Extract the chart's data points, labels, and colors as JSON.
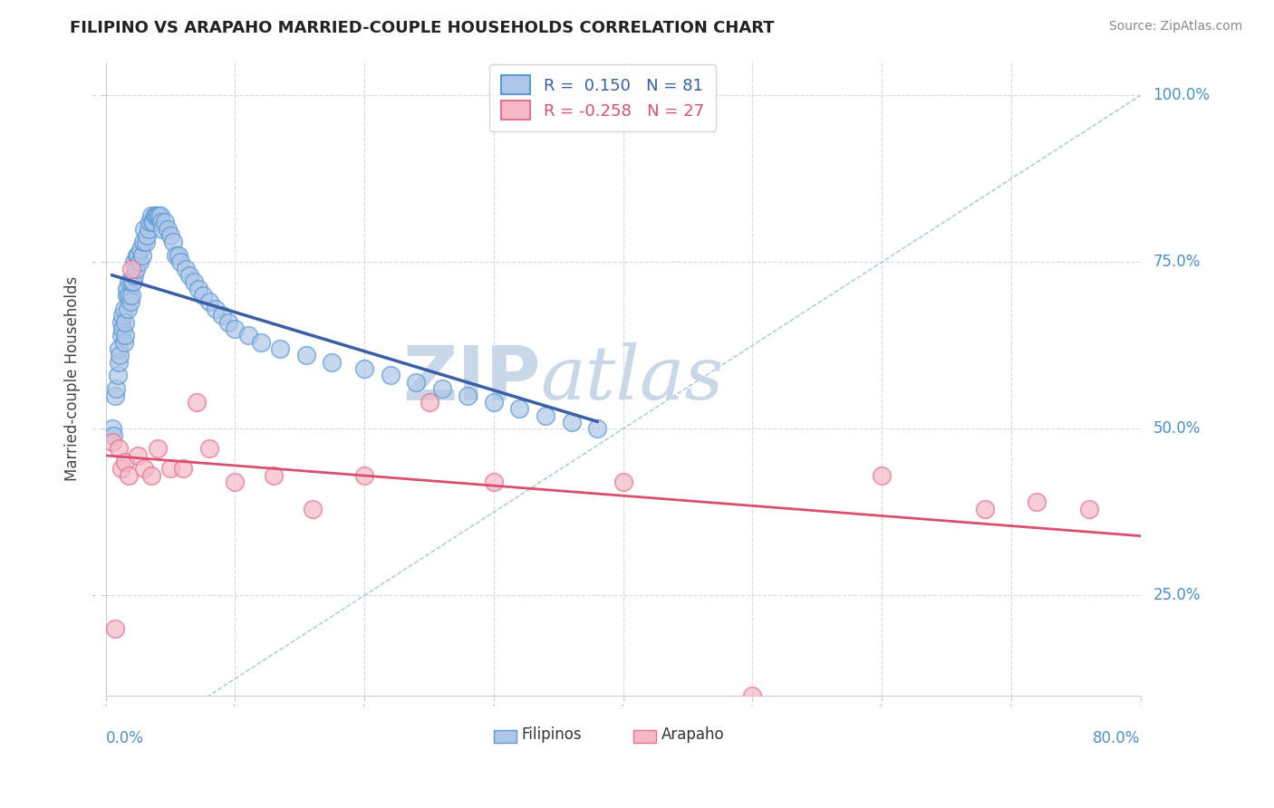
{
  "title": "FILIPINO VS ARAPAHO MARRIED-COUPLE HOUSEHOLDS CORRELATION CHART",
  "source": "Source: ZipAtlas.com",
  "ylabel": "Married-couple Households",
  "xlim": [
    0.0,
    0.8
  ],
  "ylim": [
    0.1,
    1.05
  ],
  "filipinos_R": 0.15,
  "filipinos_N": 81,
  "arapaho_R": -0.258,
  "arapaho_N": 27,
  "filipinos_color": "#aec6e8",
  "filipinos_edge_color": "#5b9bd5",
  "arapaho_color": "#f4b8c8",
  "arapaho_edge_color": "#e87090",
  "trend_filipino_color": "#3a5fa8",
  "trend_arapaho_color": "#d94f6e",
  "ref_line_color": "#9bbfd4",
  "background_color": "#ffffff",
  "watermark_zip": "ZIP",
  "watermark_atlas": "atlas",
  "watermark_color_zip": "#c8d8e8",
  "watermark_color_atlas": "#c8d8e8",
  "grid_color": "#d8d8d8",
  "ytick_vals": [
    0.25,
    0.5,
    0.75,
    1.0
  ],
  "ytick_labels": [
    "25.0%",
    "50.0%",
    "75.0%",
    "100.0%"
  ],
  "fil_x": [
    0.005,
    0.006,
    0.007,
    0.008,
    0.009,
    0.01,
    0.01,
    0.011,
    0.012,
    0.012,
    0.013,
    0.013,
    0.014,
    0.014,
    0.015,
    0.015,
    0.016,
    0.016,
    0.017,
    0.018,
    0.018,
    0.019,
    0.02,
    0.02,
    0.021,
    0.022,
    0.022,
    0.023,
    0.024,
    0.025,
    0.026,
    0.027,
    0.028,
    0.029,
    0.03,
    0.031,
    0.032,
    0.033,
    0.034,
    0.035,
    0.036,
    0.037,
    0.038,
    0.039,
    0.04,
    0.041,
    0.042,
    0.043,
    0.044,
    0.046,
    0.048,
    0.05,
    0.052,
    0.054,
    0.056,
    0.058,
    0.062,
    0.065,
    0.068,
    0.072,
    0.075,
    0.08,
    0.085,
    0.09,
    0.095,
    0.1,
    0.11,
    0.12,
    0.135,
    0.155,
    0.175,
    0.2,
    0.22,
    0.24,
    0.26,
    0.28,
    0.3,
    0.32,
    0.34,
    0.36,
    0.38
  ],
  "fil_y": [
    0.5,
    0.49,
    0.55,
    0.56,
    0.58,
    0.6,
    0.62,
    0.61,
    0.64,
    0.66,
    0.65,
    0.67,
    0.63,
    0.68,
    0.64,
    0.66,
    0.7,
    0.71,
    0.68,
    0.7,
    0.72,
    0.69,
    0.7,
    0.72,
    0.72,
    0.73,
    0.75,
    0.74,
    0.76,
    0.76,
    0.75,
    0.77,
    0.76,
    0.78,
    0.8,
    0.78,
    0.79,
    0.8,
    0.81,
    0.82,
    0.81,
    0.81,
    0.82,
    0.82,
    0.82,
    0.82,
    0.82,
    0.81,
    0.8,
    0.81,
    0.8,
    0.79,
    0.78,
    0.76,
    0.76,
    0.75,
    0.74,
    0.73,
    0.72,
    0.71,
    0.7,
    0.69,
    0.68,
    0.67,
    0.66,
    0.65,
    0.64,
    0.63,
    0.62,
    0.61,
    0.6,
    0.59,
    0.58,
    0.57,
    0.56,
    0.55,
    0.54,
    0.53,
    0.52,
    0.51,
    0.5
  ],
  "ara_x": [
    0.005,
    0.007,
    0.01,
    0.012,
    0.015,
    0.018,
    0.02,
    0.025,
    0.03,
    0.035,
    0.04,
    0.05,
    0.06,
    0.07,
    0.08,
    0.1,
    0.13,
    0.16,
    0.2,
    0.25,
    0.3,
    0.4,
    0.5,
    0.6,
    0.68,
    0.72,
    0.76
  ],
  "ara_y": [
    0.48,
    0.2,
    0.47,
    0.44,
    0.45,
    0.43,
    0.74,
    0.46,
    0.44,
    0.43,
    0.47,
    0.44,
    0.44,
    0.54,
    0.47,
    0.42,
    0.43,
    0.38,
    0.43,
    0.54,
    0.42,
    0.42,
    0.1,
    0.43,
    0.38,
    0.39,
    0.38
  ]
}
